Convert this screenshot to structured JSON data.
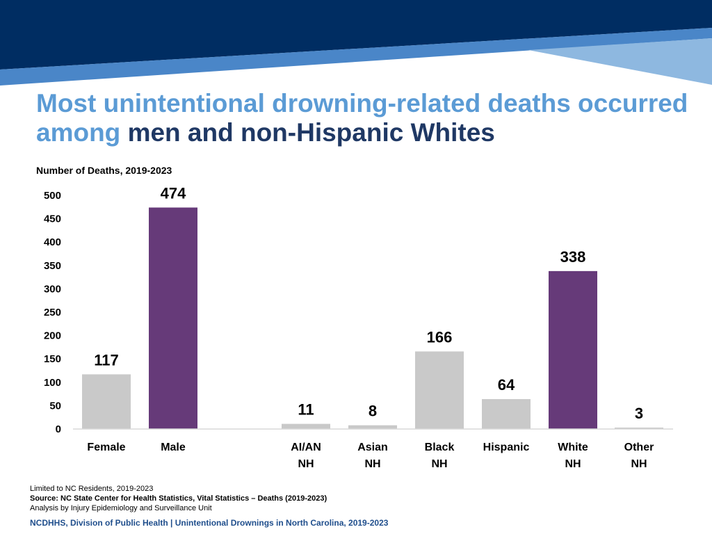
{
  "title": {
    "part1": "Most unintentional drowning-related deaths occurred among",
    "part2": "men and non-Hispanic Whites"
  },
  "chart_data": {
    "type": "bar",
    "title": "",
    "ylabel": "Number of Deaths, 2019-2023",
    "xlabel": "",
    "ylim": [
      0,
      500
    ],
    "yticks": [
      0,
      50,
      100,
      150,
      200,
      250,
      300,
      350,
      400,
      450,
      500
    ],
    "grid": false,
    "categories": [
      {
        "lines": [
          "Female"
        ],
        "value": 117,
        "color": "#c9c9c9"
      },
      {
        "lines": [
          "Male"
        ],
        "value": 474,
        "color": "#663a79"
      },
      {
        "lines": [
          "AI/AN",
          "NH"
        ],
        "value": 11,
        "color": "#c9c9c9"
      },
      {
        "lines": [
          "Asian",
          "NH"
        ],
        "value": 8,
        "color": "#c9c9c9"
      },
      {
        "lines": [
          "Black",
          "NH"
        ],
        "value": 166,
        "color": "#c9c9c9"
      },
      {
        "lines": [
          "Hispanic"
        ],
        "value": 64,
        "color": "#c9c9c9"
      },
      {
        "lines": [
          "White",
          "NH"
        ],
        "value": 338,
        "color": "#663a79"
      },
      {
        "lines": [
          "Other",
          "NH"
        ],
        "value": 3,
        "color": "#c9c9c9"
      }
    ]
  },
  "footer": {
    "note1": "Limited to NC Residents, 2019-2023",
    "source": "Source: NC State Center for Health Statistics, Vital Statistics – Deaths (2019-2023)",
    "analysis": "Analysis by Injury Epidemiology and Surveillance Unit",
    "brand": "NCDHHS, Division of Public Health | Unintentional Drownings in North Carolina, 2019-2023"
  },
  "colors": {
    "navy": "#002d62",
    "blue": "#4a86c8",
    "light_blue": "#8eb8e0",
    "title_blue": "#5b9bd5",
    "title_dark": "#1f3864"
  }
}
